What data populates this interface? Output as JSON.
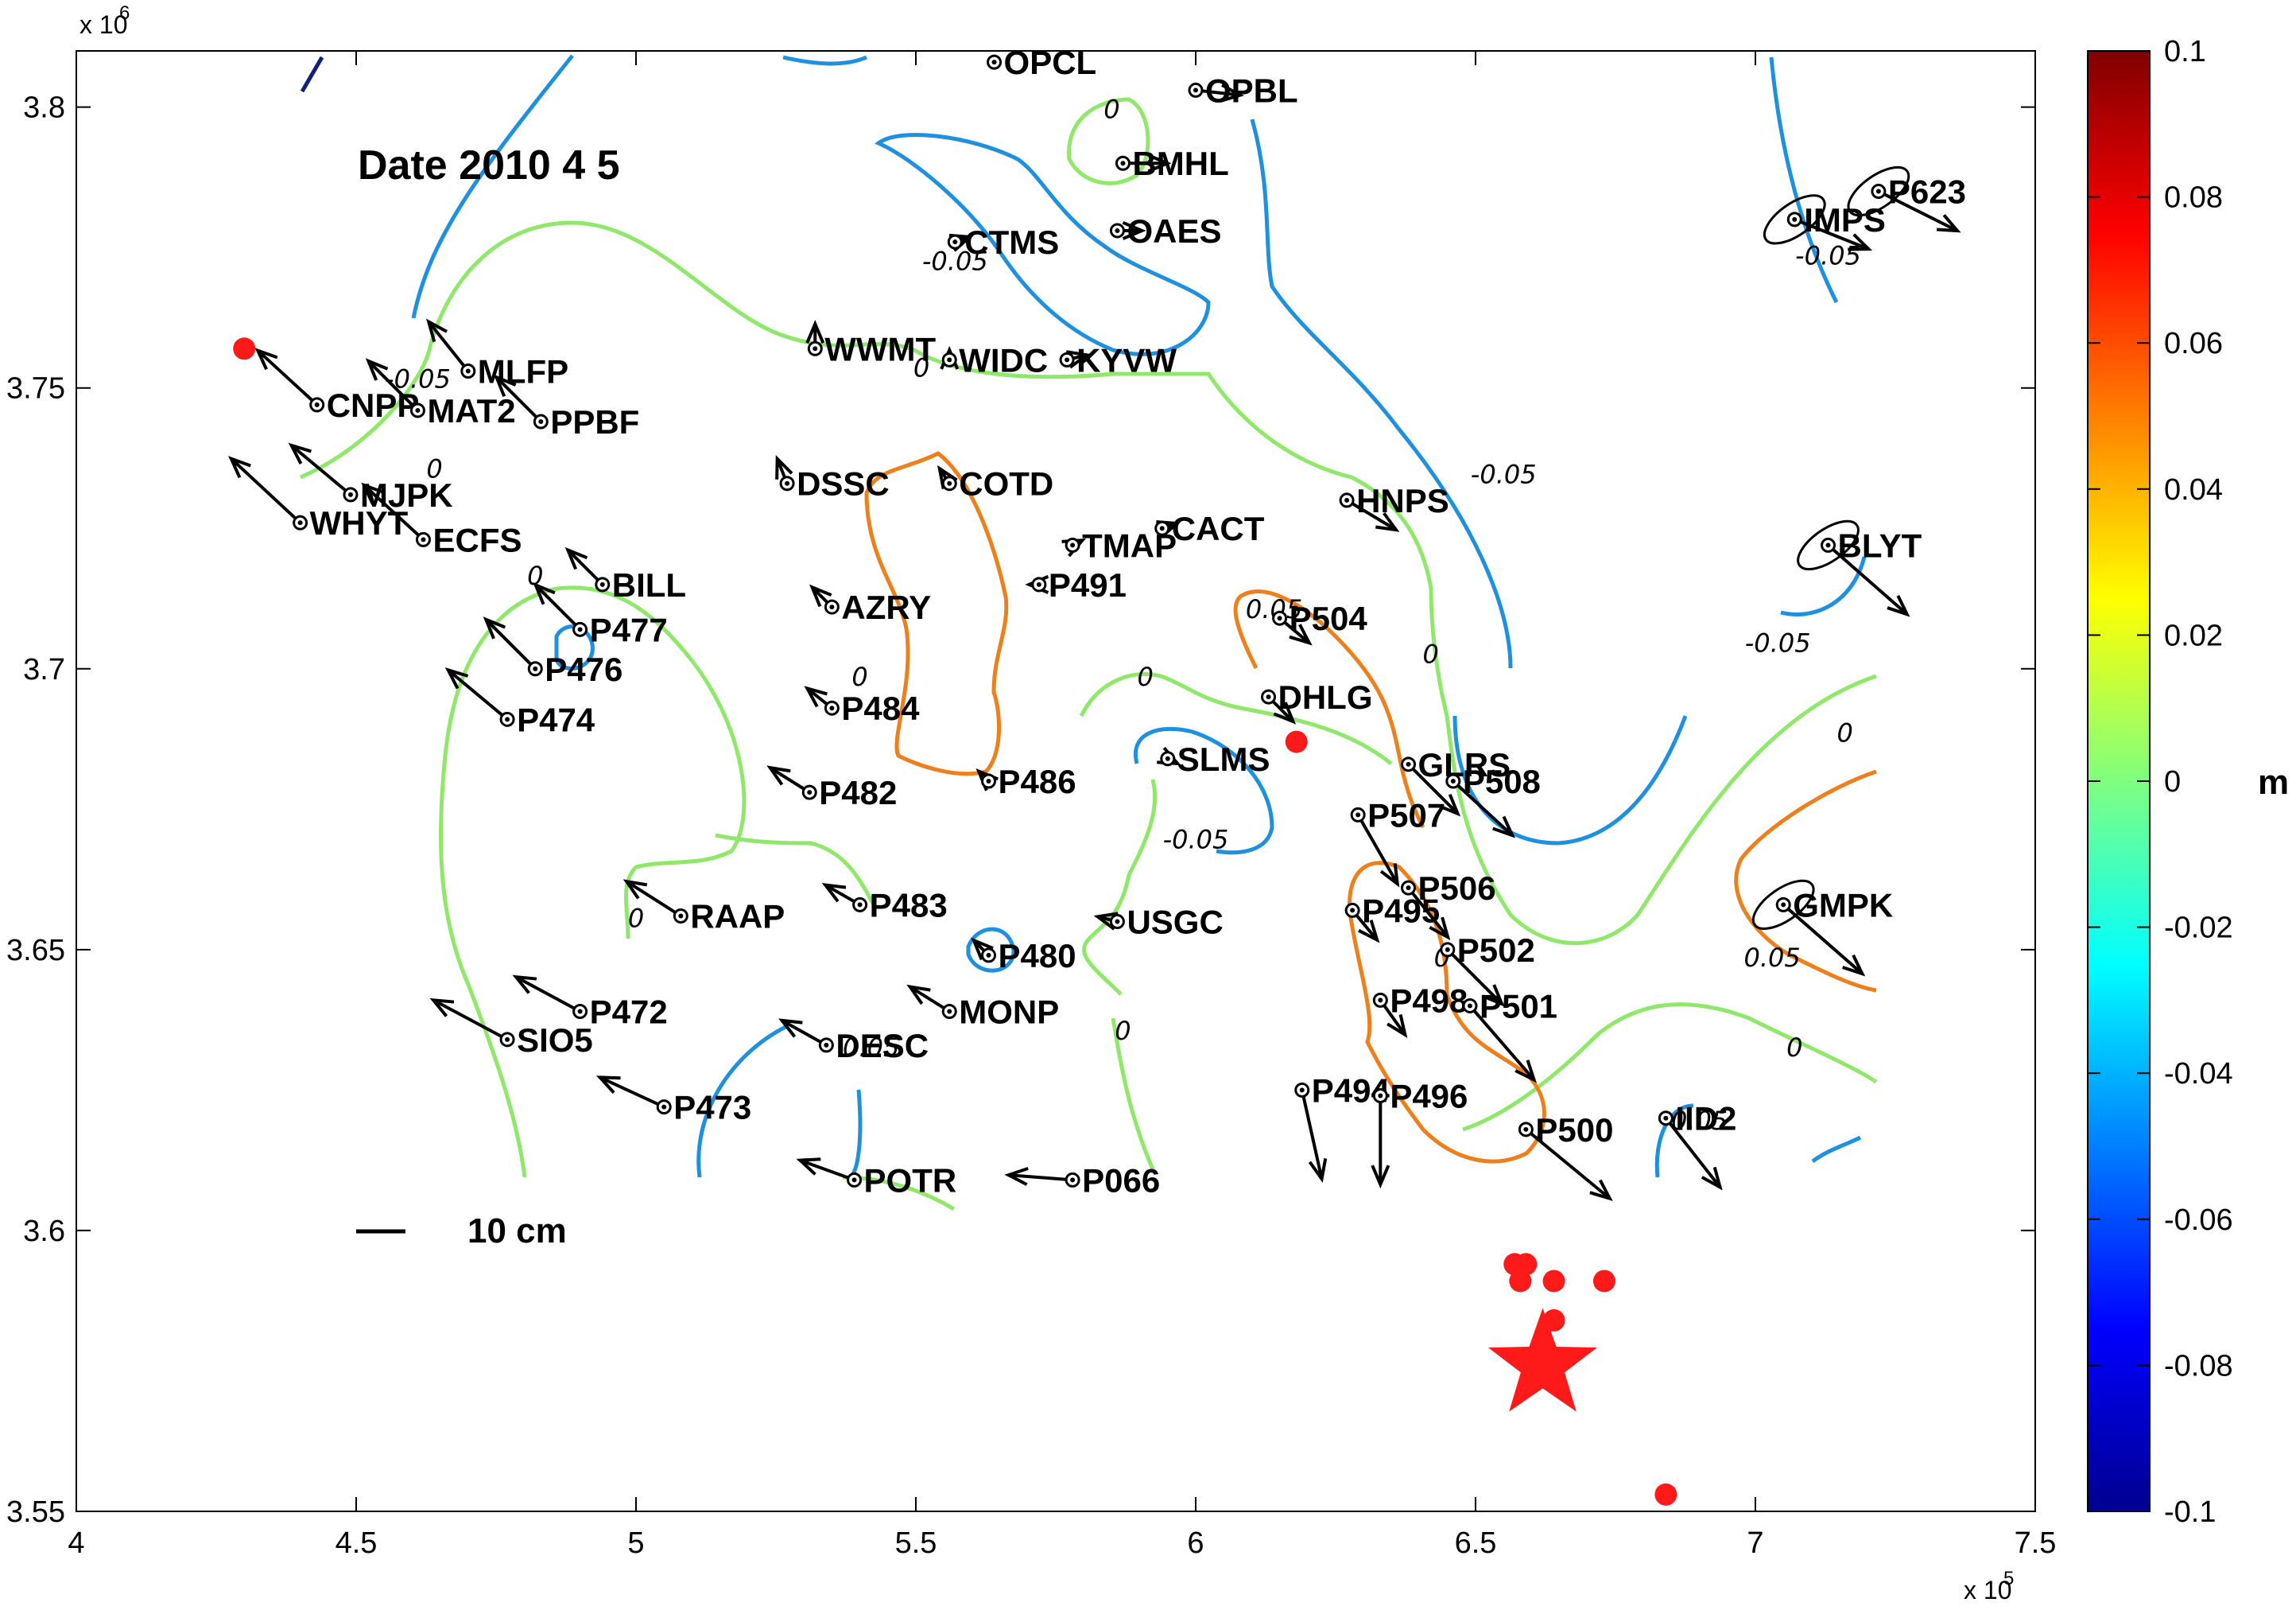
{
  "chart_data": {
    "type": "scatter",
    "title": "",
    "date_label": "Date 2010 4 5",
    "xlabel": "",
    "ylabel": "",
    "x_exponent": "x 10",
    "x_exponent_power": "5",
    "y_exponent": "x 10",
    "y_exponent_power": "6",
    "xlim": [
      400000,
      750000
    ],
    "ylim": [
      3550000,
      3810000
    ],
    "x_ticks": [
      400000,
      450000,
      500000,
      550000,
      600000,
      650000,
      700000,
      750000
    ],
    "x_tick_labels": [
      "4",
      "4.5",
      "5",
      "5.5",
      "6",
      "6.5",
      "7",
      "7.5"
    ],
    "y_ticks": [
      3550000,
      3600000,
      3650000,
      3700000,
      3750000,
      3800000
    ],
    "y_tick_labels": [
      "3.55",
      "3.6",
      "3.65",
      "3.7",
      "3.75",
      "3.8"
    ],
    "grid": false,
    "colorbar": {
      "label": "m",
      "range": [
        -0.1,
        0.1
      ],
      "ticks": [
        0.1,
        0.08,
        0.06,
        0.04,
        0.02,
        0,
        -0.02,
        -0.04,
        -0.06,
        -0.08,
        -0.1
      ],
      "tick_labels": [
        "0.1",
        "0.08",
        "0.06",
        "0.04",
        "0.02",
        "0",
        "-0.02",
        "-0.04",
        "-0.06",
        "-0.08",
        "-0.1"
      ],
      "colormap": "jet"
    },
    "scale_bar": {
      "label": "10 cm",
      "length_cm": 10
    },
    "contour_colors": {
      "positive": "#ef7f1a",
      "zero": "#8fe86a",
      "negative": "#1e90e0",
      "min": "#10207a"
    },
    "contour_labels": [
      {
        "text": "0",
        "x": 585000,
        "y": 3798000
      },
      {
        "text": "-0.05",
        "x": 557000,
        "y": 3771000
      },
      {
        "text": "-0.05",
        "x": 713000,
        "y": 3772000
      },
      {
        "text": "-0.05",
        "x": 655000,
        "y": 3733000
      },
      {
        "text": "-0.05",
        "x": 704000,
        "y": 3703000
      },
      {
        "text": "-0.05",
        "x": 461000,
        "y": 3750000
      },
      {
        "text": "0",
        "x": 464000,
        "y": 3734000
      },
      {
        "text": "0",
        "x": 482000,
        "y": 3715000
      },
      {
        "text": "0",
        "x": 551000,
        "y": 3752000
      },
      {
        "text": "0",
        "x": 591000,
        "y": 3697000
      },
      {
        "text": "0.05",
        "x": 614000,
        "y": 3709000
      },
      {
        "text": "0",
        "x": 642000,
        "y": 3701000
      },
      {
        "text": "-0.05",
        "x": 600000,
        "y": 3668000
      },
      {
        "text": "0",
        "x": 540000,
        "y": 3697000
      },
      {
        "text": "0",
        "x": 500000,
        "y": 3654000
      },
      {
        "text": "0",
        "x": 587000,
        "y": 3634000
      },
      {
        "text": "0.05",
        "x": 542000,
        "y": 3631000
      },
      {
        "text": "0",
        "x": 644000,
        "y": 3647000
      },
      {
        "text": "0",
        "x": 716000,
        "y": 3687000
      },
      {
        "text": "0.05",
        "x": 703000,
        "y": 3647000
      },
      {
        "text": "0",
        "x": 707000,
        "y": 3631000
      },
      {
        "text": "0.05",
        "x": 690000,
        "y": 3618000
      }
    ],
    "stations": [
      {
        "name": "OPCL",
        "x": 564000,
        "y": 3808000,
        "dx": 0,
        "dy": 1
      },
      {
        "name": "OPBL",
        "x": 600000,
        "y": 3803000,
        "dx": 9,
        "dy": -1
      },
      {
        "name": "BMHL",
        "x": 587000,
        "y": 3790000,
        "dx": 9,
        "dy": 0
      },
      {
        "name": "OAES",
        "x": 586000,
        "y": 3778000,
        "dx": 5,
        "dy": 0
      },
      {
        "name": "CTMS",
        "x": 557000,
        "y": 3776000,
        "dx": 3,
        "dy": 1
      },
      {
        "name": "WWMT",
        "x": 532000,
        "y": 3757000,
        "dx": 0,
        "dy": 5
      },
      {
        "name": "WIDC",
        "x": 556000,
        "y": 3755000,
        "dx": 0,
        "dy": 2
      },
      {
        "name": "KYVW",
        "x": 577000,
        "y": 3755000,
        "dx": 4,
        "dy": 1
      },
      {
        "name": "MLFP",
        "x": 470000,
        "y": 3753000,
        "dx": -8,
        "dy": 10
      },
      {
        "name": "CNPP",
        "x": 443000,
        "y": 3747000,
        "dx": -12,
        "dy": 11
      },
      {
        "name": "MAT2",
        "x": 461000,
        "y": 3746000,
        "dx": -10,
        "dy": 10
      },
      {
        "name": "PPBF",
        "x": 483000,
        "y": 3744000,
        "dx": -9,
        "dy": 9
      },
      {
        "name": "DSSC",
        "x": 527000,
        "y": 3733000,
        "dx": -2,
        "dy": 5
      },
      {
        "name": "COTD",
        "x": 556000,
        "y": 3733000,
        "dx": -2,
        "dy": 3
      },
      {
        "name": "HNPS",
        "x": 627000,
        "y": 3730000,
        "dx": 10,
        "dy": -6
      },
      {
        "name": "MJPK",
        "x": 449000,
        "y": 3731000,
        "dx": -12,
        "dy": 10
      },
      {
        "name": "WHYT",
        "x": 440000,
        "y": 3726000,
        "dx": -14,
        "dy": 13
      },
      {
        "name": "CACT",
        "x": 594000,
        "y": 3725000,
        "dx": 3,
        "dy": 1
      },
      {
        "name": "ECFS",
        "x": 462000,
        "y": 3723000,
        "dx": -12,
        "dy": 11
      },
      {
        "name": "TMAP",
        "x": 578000,
        "y": 3722000,
        "dx": 2,
        "dy": 1
      },
      {
        "name": "BILL",
        "x": 494000,
        "y": 3715000,
        "dx": -7,
        "dy": 7
      },
      {
        "name": "P491",
        "x": 572000,
        "y": 3715000,
        "dx": -2,
        "dy": 0
      },
      {
        "name": "AZRY",
        "x": 535000,
        "y": 3711000,
        "dx": -4,
        "dy": 4
      },
      {
        "name": "P504",
        "x": 615000,
        "y": 3709000,
        "dx": 6,
        "dy": -5
      },
      {
        "name": "P477",
        "x": 490000,
        "y": 3707000,
        "dx": -9,
        "dy": 9
      },
      {
        "name": "P476",
        "x": 482000,
        "y": 3700000,
        "dx": -10,
        "dy": 10
      },
      {
        "name": "DHLG",
        "x": 613000,
        "y": 3695000,
        "dx": 5,
        "dy": -5
      },
      {
        "name": "P484",
        "x": 535000,
        "y": 3693000,
        "dx": -5,
        "dy": 4
      },
      {
        "name": "P474",
        "x": 477000,
        "y": 3691000,
        "dx": -12,
        "dy": 10
      },
      {
        "name": "SLMS",
        "x": 595000,
        "y": 3684000,
        "dx": 2,
        "dy": -1
      },
      {
        "name": "GLRS",
        "x": 638000,
        "y": 3683000,
        "dx": 10,
        "dy": -10
      },
      {
        "name": "P508",
        "x": 646000,
        "y": 3680000,
        "dx": 12,
        "dy": -11
      },
      {
        "name": "P486",
        "x": 563000,
        "y": 3680000,
        "dx": -2,
        "dy": 2
      },
      {
        "name": "P482",
        "x": 531000,
        "y": 3678000,
        "dx": -8,
        "dy": 5
      },
      {
        "name": "P507",
        "x": 629000,
        "y": 3674000,
        "dx": 8,
        "dy": -14
      },
      {
        "name": "P506",
        "x": 638000,
        "y": 3661000,
        "dx": 8,
        "dy": -10
      },
      {
        "name": "P483",
        "x": 540000,
        "y": 3658000,
        "dx": -7,
        "dy": 4
      },
      {
        "name": "P495",
        "x": 628000,
        "y": 3657000,
        "dx": 5,
        "dy": -6
      },
      {
        "name": "RAAP",
        "x": 508000,
        "y": 3656000,
        "dx": -11,
        "dy": 7
      },
      {
        "name": "USGC",
        "x": 586000,
        "y": 3655000,
        "dx": -4,
        "dy": 1
      },
      {
        "name": "P502",
        "x": 645000,
        "y": 3650000,
        "dx": 11,
        "dy": -11
      },
      {
        "name": "P480",
        "x": 563000,
        "y": 3649000,
        "dx": -3,
        "dy": 3
      },
      {
        "name": "MONP",
        "x": 556000,
        "y": 3639000,
        "dx": -8,
        "dy": 5
      },
      {
        "name": "P472",
        "x": 490000,
        "y": 3639000,
        "dx": -13,
        "dy": 7
      },
      {
        "name": "P498",
        "x": 633000,
        "y": 3641000,
        "dx": 5,
        "dy": -7
      },
      {
        "name": "P501",
        "x": 649000,
        "y": 3640000,
        "dx": 13,
        "dy": -15
      },
      {
        "name": "SIO5",
        "x": 477000,
        "y": 3634000,
        "dx": -15,
        "dy": 8
      },
      {
        "name": "DESC",
        "x": 534000,
        "y": 3633000,
        "dx": -9,
        "dy": 5
      },
      {
        "name": "P494",
        "x": 619000,
        "y": 3625000,
        "dx": 4,
        "dy": -18
      },
      {
        "name": "P496",
        "x": 633000,
        "y": 3624000,
        "dx": 0,
        "dy": -18
      },
      {
        "name": "P473",
        "x": 505000,
        "y": 3622000,
        "dx": -13,
        "dy": 6
      },
      {
        "name": "P500",
        "x": 659000,
        "y": 3618000,
        "dx": 17,
        "dy": -14
      },
      {
        "name": "IID2",
        "x": 684000,
        "y": 3620000,
        "dx": 11,
        "dy": -14
      },
      {
        "name": "POTR",
        "x": 539000,
        "y": 3609000,
        "dx": -11,
        "dy": 4
      },
      {
        "name": "P066",
        "x": 578000,
        "y": 3609000,
        "dx": -13,
        "dy": 1
      },
      {
        "name": "IMPS",
        "x": 707000,
        "y": 3780000,
        "dx": 15,
        "dy": -6
      },
      {
        "name": "P623",
        "x": 722000,
        "y": 3785000,
        "dx": 16,
        "dy": -8
      },
      {
        "name": "BLYT",
        "x": 713000,
        "y": 3722000,
        "dx": 16,
        "dy": -14
      },
      {
        "name": "GMPK",
        "x": 705000,
        "y": 3658000,
        "dx": 16,
        "dy": -14
      }
    ],
    "error_ellipses": [
      {
        "station": "IMPS"
      },
      {
        "station": "P623"
      },
      {
        "station": "BLYT"
      },
      {
        "station": "GMPK"
      }
    ],
    "events": [
      {
        "x": 430000,
        "y": 3757000
      },
      {
        "x": 618000,
        "y": 3687000
      },
      {
        "x": 657000,
        "y": 3594000
      },
      {
        "x": 659000,
        "y": 3594000
      },
      {
        "x": 658000,
        "y": 3591000
      },
      {
        "x": 664000,
        "y": 3591000
      },
      {
        "x": 673000,
        "y": 3591000
      },
      {
        "x": 664000,
        "y": 3584000
      },
      {
        "x": 684000,
        "y": 3553000
      }
    ],
    "mainshock": {
      "x": 662000,
      "y": 3576000
    }
  }
}
